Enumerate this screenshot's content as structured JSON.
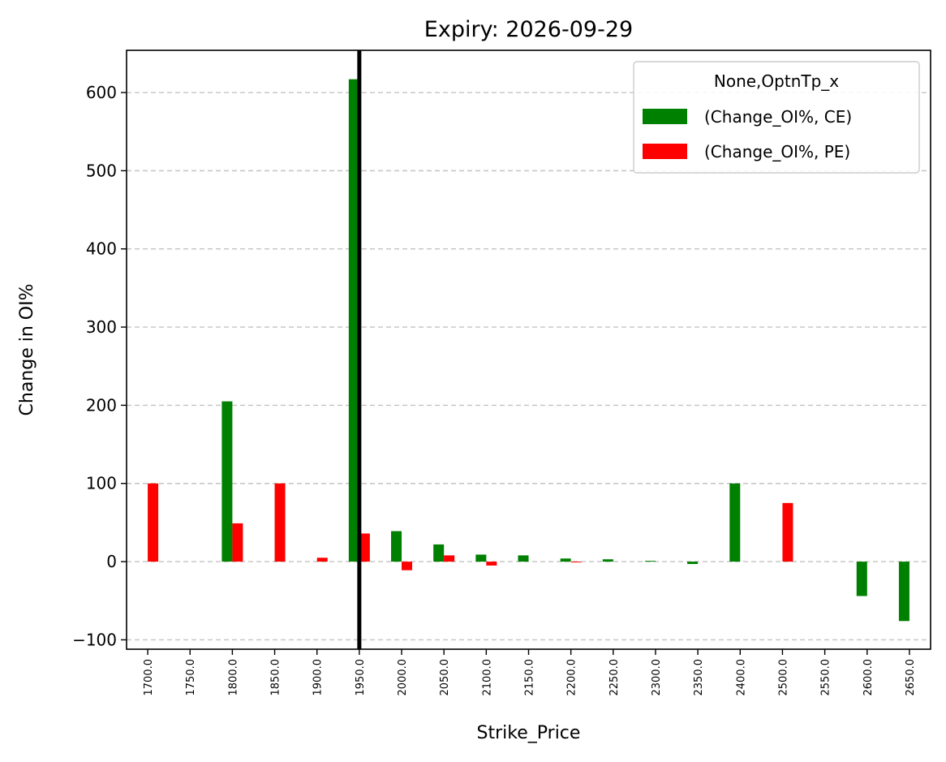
{
  "chart_data": {
    "type": "bar",
    "title": "Expiry: 2026-09-29",
    "xlabel": "Strike_Price",
    "ylabel": "Change in OI%",
    "ylim": [
      -112,
      654
    ],
    "yticks": [
      -100,
      0,
      100,
      200,
      300,
      400,
      500,
      600
    ],
    "ytick_labels": [
      "−100",
      "0",
      "100",
      "200",
      "300",
      "400",
      "500",
      "600"
    ],
    "categories": [
      "1700.0",
      "1750.0",
      "1800.0",
      "1850.0",
      "1900.0",
      "1950.0",
      "2000.0",
      "2050.0",
      "2100.0",
      "2150.0",
      "2200.0",
      "2250.0",
      "2300.0",
      "2350.0",
      "2400.0",
      "2500.0",
      "2550.0",
      "2600.0",
      "2650.0"
    ],
    "grid": "y-dashed",
    "vertical_marker": {
      "category": "1950.0",
      "color": "#000000"
    },
    "legend": {
      "title": "None,OptnTp_x",
      "placement": "top-right"
    },
    "series": [
      {
        "name": "(Change_OI%, CE)",
        "color": "#008000",
        "values": [
          null,
          null,
          205,
          null,
          null,
          617,
          39,
          22,
          9,
          8,
          4,
          3,
          1,
          -3,
          100,
          null,
          null,
          -44,
          -76
        ]
      },
      {
        "name": "(Change_OI%, PE)",
        "color": "#ff0000",
        "values": [
          100,
          null,
          49,
          100,
          5,
          36,
          -11,
          8,
          -5,
          null,
          -1,
          null,
          null,
          null,
          null,
          75,
          null,
          null,
          null
        ]
      }
    ]
  }
}
